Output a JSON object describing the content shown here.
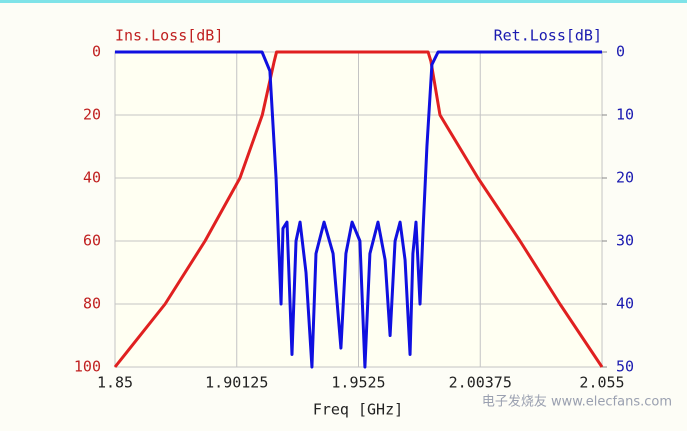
{
  "chart_data": {
    "type": "line",
    "y_label": "Ins.Loss[dB]",
    "y2_label": "Ret.Loss[dB]",
    "x_label": "Freq [GHz]",
    "xlim": [
      1.85,
      2.055
    ],
    "xticks": [
      1.85,
      1.90125,
      1.9525,
      2.00375,
      2.055
    ],
    "ylim": [
      100,
      0
    ],
    "yticks": [
      0,
      20,
      40,
      60,
      80,
      100
    ],
    "y2lim": [
      50,
      0
    ],
    "y2ticks": [
      0,
      10,
      20,
      30,
      40,
      50
    ],
    "grid": true,
    "series": [
      {
        "color": "#e02020",
        "axis": "y",
        "x": [
          1.85,
          1.8711,
          1.8879,
          1.9026,
          1.912,
          1.917,
          1.918,
          1.9818,
          1.983,
          1.9868,
          2.0028,
          2.0205,
          2.0373,
          2.055
        ],
        "values": [
          100,
          80,
          60,
          40,
          20,
          3,
          0,
          0,
          3,
          20,
          40,
          60,
          80,
          100
        ]
      },
      {
        "color": "#1010e0",
        "axis": "y2",
        "x": [
          1.85,
          1.9119,
          1.9152,
          1.9178,
          1.9199,
          1.9207,
          1.9224,
          1.9245,
          1.9262,
          1.9279,
          1.9304,
          1.9329,
          1.9346,
          1.938,
          1.9418,
          1.9451,
          1.9472,
          1.9498,
          1.9531,
          1.9552,
          1.9573,
          1.9607,
          1.9637,
          1.9658,
          1.9679,
          1.97,
          1.9721,
          1.9742,
          1.9754,
          1.9767,
          1.9784,
          1.9797,
          1.9813,
          1.9834,
          1.986,
          2.055
        ],
        "values": [
          0,
          0,
          3,
          20,
          40,
          28,
          27,
          48,
          30,
          27,
          35,
          50,
          32,
          27,
          32,
          47,
          32,
          27,
          30,
          50,
          32,
          27,
          33,
          45,
          30,
          27,
          33,
          48,
          32,
          27,
          40,
          28,
          15,
          2,
          0,
          0
        ]
      }
    ],
    "watermark": "电子发烧友 www.elecfans.com"
  }
}
